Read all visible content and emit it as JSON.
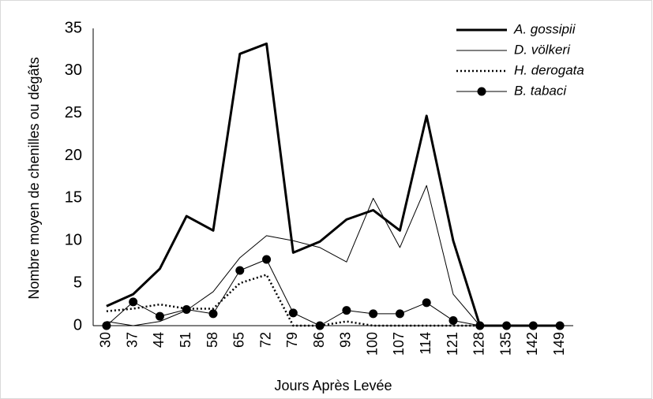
{
  "chart_data": {
    "type": "line",
    "categories": [
      "30",
      "37",
      "44",
      "51",
      "58",
      "65",
      "72",
      "79",
      "86",
      "93",
      "100",
      "107",
      "114",
      "121",
      "128",
      "135",
      "142",
      "149"
    ],
    "x_label": "Jours Après Levée",
    "y_label": "Nombre moyen de chenilles ou dégâts",
    "ylim": [
      0,
      35
    ],
    "yticks": [
      0,
      5,
      10,
      15,
      20,
      25,
      30,
      35
    ],
    "grid": false,
    "legend": "upper right",
    "series": [
      {
        "name": "A. gossipii",
        "color": "#000000",
        "line_width": 3,
        "dash": "none",
        "marker": "none",
        "values": [
          2.3,
          3.7,
          6.7,
          12.9,
          11.2,
          32,
          33.2,
          8.6,
          9.9,
          12.5,
          13.6,
          11.2,
          24.7,
          10,
          0,
          0,
          0,
          0
        ]
      },
      {
        "name": "D. völkeri",
        "color": "#000000",
        "line_width": 1,
        "dash": "none",
        "marker": "none",
        "values": [
          0.5,
          0,
          0.5,
          1.8,
          4,
          8,
          10.6,
          10,
          9.2,
          7.5,
          15,
          9.2,
          16.5,
          3.7,
          0,
          0,
          0,
          0
        ]
      },
      {
        "name": "H. derogata",
        "color": "#000000",
        "line_width": 2.5,
        "dash": "2 3",
        "marker": "none",
        "values": [
          1.7,
          2,
          2.5,
          2,
          2,
          5,
          6,
          0,
          0,
          0.5,
          0,
          0,
          0,
          0,
          0,
          0,
          0,
          0
        ]
      },
      {
        "name": "B. tabaci",
        "color": "#000000",
        "line_width": 1,
        "dash": "none",
        "marker": "circle",
        "values": [
          0,
          2.8,
          1.1,
          1.9,
          1.4,
          6.5,
          7.8,
          1.5,
          0,
          1.8,
          1.4,
          1.4,
          2.7,
          0.6,
          0,
          0,
          0,
          0
        ]
      }
    ]
  }
}
